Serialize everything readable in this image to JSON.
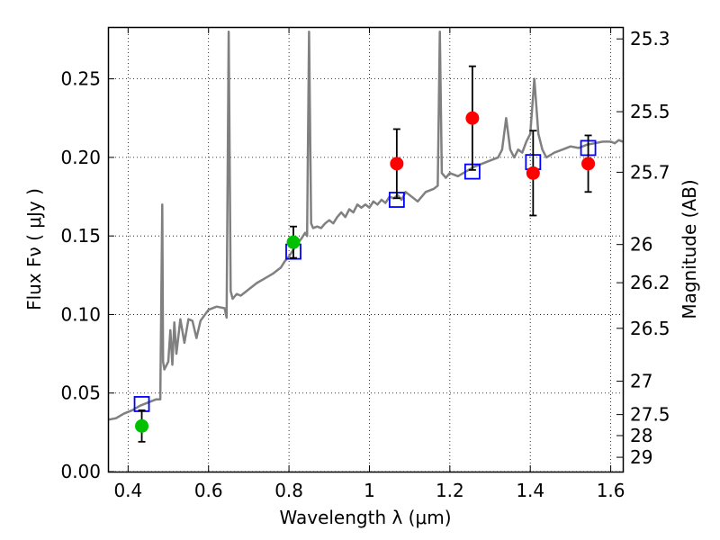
{
  "chart_data": {
    "type": "scatter",
    "xlabel": "Wavelength  λ (μm)",
    "ylabel": "Flux  Fν  ( μJy )",
    "y2label": "Magnitude (AB)",
    "xlim": [
      0.35,
      1.63
    ],
    "ylim": [
      0.0,
      0.283
    ],
    "grid": true,
    "x_ticks": [
      {
        "value": 0.4,
        "label": "0.4"
      },
      {
        "value": 0.6,
        "label": "0.6"
      },
      {
        "value": 0.8,
        "label": "0.8"
      },
      {
        "value": 1.0,
        "label": "1"
      },
      {
        "value": 1.2,
        "label": "1.2"
      },
      {
        "value": 1.4,
        "label": "1.4"
      },
      {
        "value": 1.6,
        "label": "1.6"
      }
    ],
    "y_ticks": [
      {
        "value": 0.0,
        "label": "0.00"
      },
      {
        "value": 0.05,
        "label": "0.05"
      },
      {
        "value": 0.1,
        "label": "0.10"
      },
      {
        "value": 0.15,
        "label": "0.15"
      },
      {
        "value": 0.2,
        "label": "0.20"
      },
      {
        "value": 0.25,
        "label": "0.25"
      }
    ],
    "y2_ticks": [
      {
        "value": 25.3,
        "label": "25.3"
      },
      {
        "value": 25.5,
        "label": "25.5"
      },
      {
        "value": 25.7,
        "label": "25.7"
      },
      {
        "value": 26,
        "label": "26"
      },
      {
        "value": 26.2,
        "label": "26.2"
      },
      {
        "value": 26.5,
        "label": "26.5"
      },
      {
        "value": 27,
        "label": "27"
      },
      {
        "value": 27.5,
        "label": "27.5"
      },
      {
        "value": 28,
        "label": "28"
      },
      {
        "value": 29,
        "label": "29"
      }
    ],
    "series": [
      {
        "kind": "line",
        "color": "#808080",
        "points": [
          [
            0.35,
            0.033
          ],
          [
            0.37,
            0.034
          ],
          [
            0.39,
            0.037
          ],
          [
            0.41,
            0.039
          ],
          [
            0.43,
            0.042
          ],
          [
            0.45,
            0.044
          ],
          [
            0.47,
            0.046
          ],
          [
            0.48,
            0.046
          ],
          [
            0.485,
            0.17
          ],
          [
            0.487,
            0.07
          ],
          [
            0.49,
            0.065
          ],
          [
            0.5,
            0.07
          ],
          [
            0.505,
            0.09
          ],
          [
            0.51,
            0.068
          ],
          [
            0.515,
            0.095
          ],
          [
            0.52,
            0.075
          ],
          [
            0.53,
            0.097
          ],
          [
            0.54,
            0.082
          ],
          [
            0.55,
            0.097
          ],
          [
            0.56,
            0.096
          ],
          [
            0.57,
            0.085
          ],
          [
            0.58,
            0.096
          ],
          [
            0.6,
            0.103
          ],
          [
            0.62,
            0.105
          ],
          [
            0.64,
            0.104
          ],
          [
            0.645,
            0.098
          ],
          [
            0.65,
            0.28
          ],
          [
            0.655,
            0.115
          ],
          [
            0.66,
            0.11
          ],
          [
            0.67,
            0.113
          ],
          [
            0.68,
            0.112
          ],
          [
            0.7,
            0.116
          ],
          [
            0.72,
            0.12
          ],
          [
            0.74,
            0.123
          ],
          [
            0.76,
            0.126
          ],
          [
            0.78,
            0.13
          ],
          [
            0.79,
            0.134
          ],
          [
            0.8,
            0.137
          ],
          [
            0.81,
            0.141
          ],
          [
            0.82,
            0.145
          ],
          [
            0.83,
            0.148
          ],
          [
            0.84,
            0.152
          ],
          [
            0.845,
            0.15
          ],
          [
            0.85,
            0.28
          ],
          [
            0.855,
            0.158
          ],
          [
            0.86,
            0.155
          ],
          [
            0.87,
            0.156
          ],
          [
            0.88,
            0.155
          ],
          [
            0.89,
            0.158
          ],
          [
            0.9,
            0.16
          ],
          [
            0.91,
            0.158
          ],
          [
            0.92,
            0.162
          ],
          [
            0.93,
            0.165
          ],
          [
            0.94,
            0.162
          ],
          [
            0.95,
            0.167
          ],
          [
            0.96,
            0.165
          ],
          [
            0.97,
            0.17
          ],
          [
            0.98,
            0.168
          ],
          [
            0.99,
            0.17
          ],
          [
            1.0,
            0.168
          ],
          [
            1.01,
            0.172
          ],
          [
            1.02,
            0.17
          ],
          [
            1.03,
            0.173
          ],
          [
            1.04,
            0.171
          ],
          [
            1.05,
            0.175
          ],
          [
            1.06,
            0.174
          ],
          [
            1.07,
            0.176
          ],
          [
            1.08,
            0.173
          ],
          [
            1.09,
            0.178
          ],
          [
            1.1,
            0.176
          ],
          [
            1.12,
            0.172
          ],
          [
            1.14,
            0.178
          ],
          [
            1.16,
            0.18
          ],
          [
            1.17,
            0.182
          ],
          [
            1.175,
            0.28
          ],
          [
            1.18,
            0.19
          ],
          [
            1.19,
            0.187
          ],
          [
            1.2,
            0.19
          ],
          [
            1.22,
            0.188
          ],
          [
            1.24,
            0.191
          ],
          [
            1.26,
            0.194
          ],
          [
            1.28,
            0.196
          ],
          [
            1.3,
            0.198
          ],
          [
            1.32,
            0.2
          ],
          [
            1.33,
            0.205
          ],
          [
            1.34,
            0.225
          ],
          [
            1.35,
            0.205
          ],
          [
            1.36,
            0.2
          ],
          [
            1.37,
            0.205
          ],
          [
            1.38,
            0.203
          ],
          [
            1.39,
            0.21
          ],
          [
            1.4,
            0.215
          ],
          [
            1.41,
            0.25
          ],
          [
            1.42,
            0.215
          ],
          [
            1.43,
            0.205
          ],
          [
            1.44,
            0.2
          ],
          [
            1.46,
            0.203
          ],
          [
            1.48,
            0.205
          ],
          [
            1.5,
            0.207
          ],
          [
            1.52,
            0.206
          ],
          [
            1.54,
            0.208
          ],
          [
            1.56,
            0.209
          ],
          [
            1.58,
            0.21
          ],
          [
            1.6,
            0.21
          ],
          [
            1.61,
            0.209
          ],
          [
            1.62,
            0.211
          ],
          [
            1.63,
            0.21
          ]
        ]
      },
      {
        "kind": "markers",
        "marker": "square",
        "color": "#0000ff",
        "points": [
          [
            0.434,
            0.043
          ],
          [
            0.811,
            0.14
          ],
          [
            1.068,
            0.173
          ],
          [
            1.256,
            0.191
          ],
          [
            1.407,
            0.197
          ],
          [
            1.544,
            0.206
          ]
        ]
      },
      {
        "kind": "markers",
        "marker": "circle",
        "color": "#00c000",
        "points": [
          {
            "x": 0.434,
            "y": 0.029,
            "err": 0.01
          },
          {
            "x": 0.811,
            "y": 0.146,
            "err": 0.01
          }
        ]
      },
      {
        "kind": "markers",
        "marker": "circle",
        "color": "#ff0000",
        "points": [
          {
            "x": 1.068,
            "y": 0.196,
            "err": 0.022
          },
          {
            "x": 1.256,
            "y": 0.225,
            "err": 0.033
          },
          {
            "x": 1.407,
            "y": 0.19,
            "err": 0.027
          },
          {
            "x": 1.544,
            "y": 0.196,
            "err": 0.018
          }
        ]
      }
    ]
  }
}
